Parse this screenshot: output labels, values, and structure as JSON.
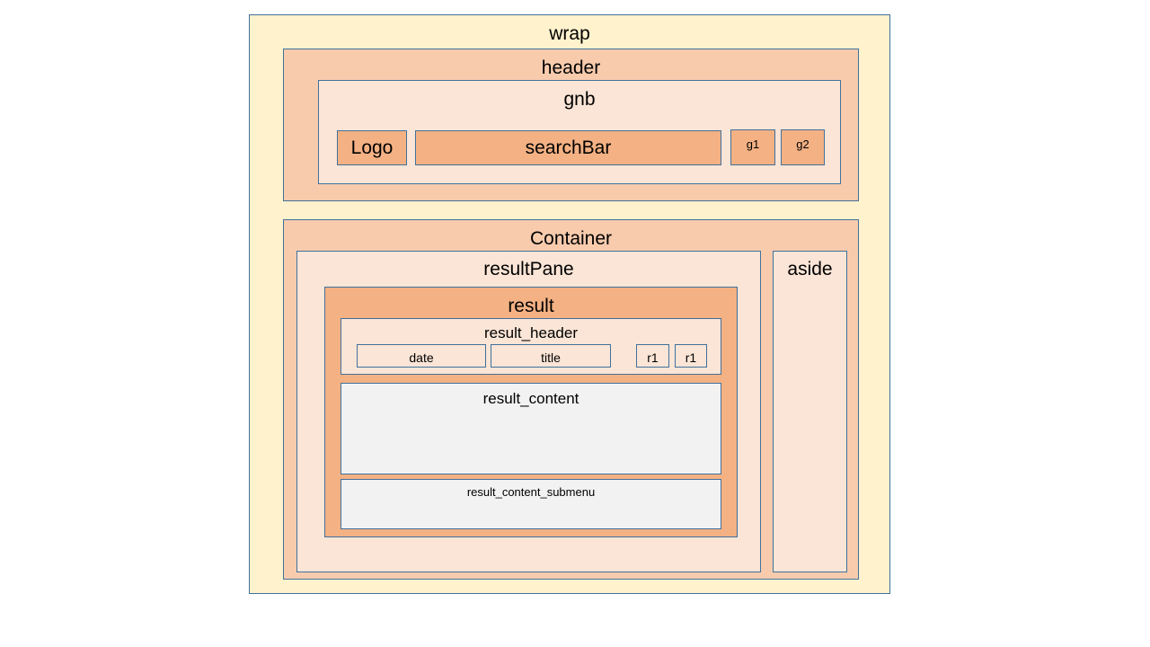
{
  "colors": {
    "wrap_fill": "#fff2cc",
    "level1_fill": "#f8cbad",
    "level2_fill": "#fbe5d6",
    "level3_fill": "#f4b183",
    "content_fill": "#f2f2f2",
    "border": "#41719c"
  },
  "wrap": {
    "label": "wrap"
  },
  "header": {
    "label": "header",
    "gnb": {
      "label": "gnb",
      "logo": "Logo",
      "search_bar": "searchBar",
      "g1": "g1",
      "g2": "g2"
    }
  },
  "container": {
    "label": "Container",
    "result_pane": {
      "label": "resultPane",
      "result": {
        "label": "result",
        "result_header": {
          "label": "result_header",
          "date": "date",
          "title": "title",
          "r1_a": "r1",
          "r1_b": "r1"
        },
        "result_content": "result_content",
        "result_content_submenu": "result_content_submenu"
      }
    },
    "aside": "aside"
  }
}
